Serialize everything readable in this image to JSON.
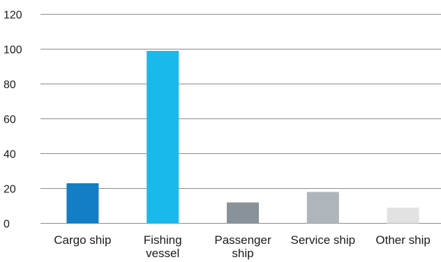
{
  "chart_data": {
    "type": "bar",
    "title": "",
    "xlabel": "",
    "ylabel": "",
    "ylim": [
      0,
      120
    ],
    "yticks": [
      0,
      20,
      40,
      60,
      80,
      100,
      120
    ],
    "grid": true,
    "categories": [
      [
        "Cargo ship"
      ],
      [
        "Fishing",
        "vessel"
      ],
      [
        "Passenger",
        "ship"
      ],
      [
        "Service ship"
      ],
      [
        "Other ship"
      ]
    ],
    "values": [
      23,
      99,
      12,
      18,
      9
    ],
    "colors": [
      "#137ec5",
      "#1ab9ec",
      "#8a9299",
      "#aeb5bb",
      "#e2e2e2"
    ]
  }
}
